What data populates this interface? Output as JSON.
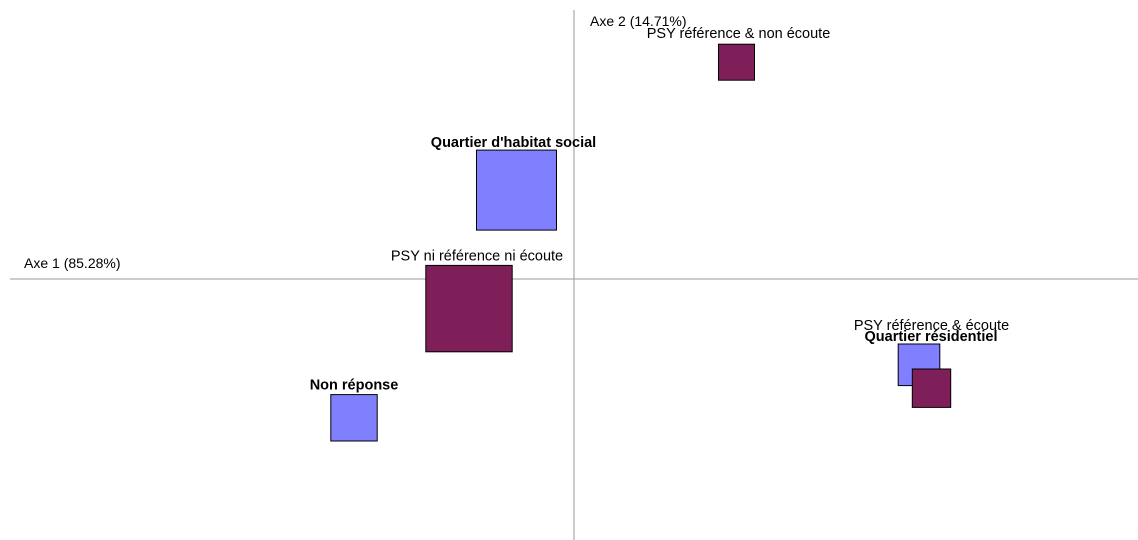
{
  "chart_data": {
    "type": "scatter",
    "xlabel": "Axe 1 (85.28%)",
    "ylabel": "Axe 2 (14.71%)",
    "grid": false,
    "legend": "none",
    "marker_shape": "square",
    "series": [
      {
        "color": "#8080ff",
        "label_style": "bold",
        "points": [
          {
            "label": "Quartier d'habitat social",
            "x": -0.23,
            "y": 0.57,
            "weight": 1.0
          },
          {
            "label": "Quartier résidentiel",
            "x": 1.38,
            "y": -0.55,
            "weight": 0.52
          },
          {
            "label": "Non réponse",
            "x": -0.88,
            "y": -0.89,
            "weight": 0.58
          }
        ]
      },
      {
        "color": "#7f1f5a",
        "label_style": "normal",
        "points": [
          {
            "label": "PSY ni référence ni écoute",
            "x": -0.42,
            "y": -0.19,
            "weight": 1.08
          },
          {
            "label": "PSY référence & non écoute",
            "x": 0.65,
            "y": 1.39,
            "weight": 0.45
          },
          {
            "label": "PSY référence & écoute",
            "x": 1.43,
            "y": -0.7,
            "weight": 0.48
          }
        ]
      }
    ]
  }
}
